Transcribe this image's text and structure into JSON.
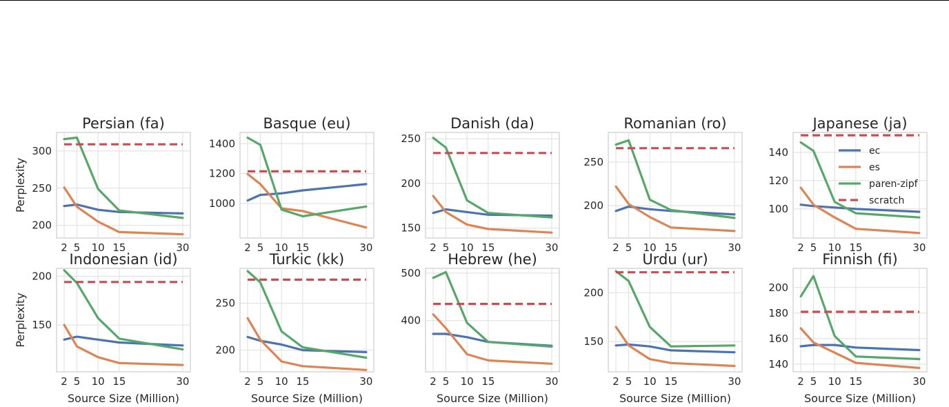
{
  "legend": {
    "position": "upper-right of Japanese (ja) panel",
    "entries": [
      {
        "key": "ec",
        "label": "ec",
        "color": "#4c72b0",
        "dash": false
      },
      {
        "key": "es",
        "label": "es",
        "color": "#dd8452",
        "dash": false
      },
      {
        "key": "parenzipf",
        "label": "paren-zipf",
        "color": "#55a868",
        "dash": false
      },
      {
        "key": "scratch",
        "label": "scratch",
        "color": "#c44e52",
        "dash": true
      }
    ]
  },
  "shared": {
    "xlabel": "Source Size (Million)",
    "ylabel": "Perplexity",
    "xticks": [
      2,
      5,
      10,
      15,
      30
    ],
    "xlim": [
      0.2,
      31.8
    ]
  },
  "chart_data": [
    {
      "type": "line",
      "title": "Persian (fa)",
      "ylim": [
        183,
        325
      ],
      "yticks": [
        200,
        250,
        300
      ],
      "x": [
        2,
        5,
        10,
        15,
        30
      ],
      "series": [
        {
          "name": "ec",
          "values": [
            226,
            228,
            221,
            218,
            216
          ]
        },
        {
          "name": "es",
          "values": [
            251,
            225,
            205,
            191,
            188
          ]
        },
        {
          "name": "paren-zipf",
          "values": [
            316,
            318,
            249,
            220,
            210
          ]
        },
        {
          "name": "scratch",
          "values": [
            309,
            309,
            309,
            309,
            309
          ]
        }
      ]
    },
    {
      "type": "line",
      "title": "Basque (eu)",
      "ylim": [
        770,
        1475
      ],
      "yticks": [
        1000,
        1200,
        1400
      ],
      "x": [
        2,
        5,
        10,
        15,
        30
      ],
      "series": [
        {
          "name": "ec",
          "values": [
            1020,
            1058,
            1068,
            1088,
            1130
          ]
        },
        {
          "name": "es",
          "values": [
            1197,
            1130,
            968,
            950,
            840
          ]
        },
        {
          "name": "paren-zipf",
          "values": [
            1440,
            1392,
            960,
            915,
            980
          ]
        },
        {
          "name": "scratch",
          "values": [
            1215,
            1215,
            1215,
            1215,
            1215
          ]
        }
      ]
    },
    {
      "type": "line",
      "title": "Danish (da)",
      "ylim": [
        139,
        257
      ],
      "yticks": [
        150,
        200,
        250
      ],
      "x": [
        2,
        5,
        10,
        15,
        30
      ],
      "series": [
        {
          "name": "ec",
          "values": [
            167,
            171,
            168,
            165,
            164
          ]
        },
        {
          "name": "es",
          "values": [
            186,
            168,
            154,
            149,
            145
          ]
        },
        {
          "name": "paren-zipf",
          "values": [
            251,
            240,
            181,
            167,
            162
          ]
        },
        {
          "name": "scratch",
          "values": [
            234,
            234,
            234,
            234,
            234
          ]
        }
      ]
    },
    {
      "type": "line",
      "title": "Romanian (ro)",
      "ylim": [
        163,
        284
      ],
      "yticks": [
        200,
        250
      ],
      "x": [
        2,
        5,
        10,
        15,
        30
      ],
      "series": [
        {
          "name": "ec",
          "values": [
            194,
            199,
            196,
            194,
            190
          ]
        },
        {
          "name": "es",
          "values": [
            222,
            202,
            187,
            175,
            171
          ]
        },
        {
          "name": "paren-zipf",
          "values": [
            270,
            275,
            207,
            195,
            186
          ]
        },
        {
          "name": "scratch",
          "values": [
            266,
            266,
            266,
            266,
            266
          ]
        }
      ]
    },
    {
      "type": "line",
      "title": "Japanese (ja)",
      "ylim": [
        79.5,
        154
      ],
      "yticks": [
        100,
        120,
        140
      ],
      "x": [
        2,
        5,
        10,
        15,
        30
      ],
      "series": [
        {
          "name": "ec",
          "values": [
            103,
            102,
            101,
            100,
            98
          ]
        },
        {
          "name": "es",
          "values": [
            115,
            103,
            94,
            86,
            83
          ]
        },
        {
          "name": "paren-zipf",
          "values": [
            147,
            141,
            105,
            97,
            94
          ]
        },
        {
          "name": "scratch",
          "values": [
            152,
            152,
            152,
            152,
            152
          ]
        }
      ]
    },
    {
      "type": "line",
      "title": "Indonesian (id)",
      "ylim": [
        102,
        208
      ],
      "yticks": [
        150,
        200
      ],
      "x": [
        2,
        5,
        10,
        15,
        30
      ],
      "series": [
        {
          "name": "ec",
          "values": [
            135,
            138,
            135,
            132,
            129
          ]
        },
        {
          "name": "es",
          "values": [
            150,
            128,
            117,
            111,
            109
          ]
        },
        {
          "name": "paren-zipf",
          "values": [
            206,
            193,
            157,
            136,
            125
          ]
        },
        {
          "name": "scratch",
          "values": [
            194,
            194,
            194,
            194,
            194
          ]
        }
      ]
    },
    {
      "type": "line",
      "title": "Turkic (kk)",
      "ylim": [
        177,
        287
      ],
      "yticks": [
        200,
        250
      ],
      "x": [
        2,
        5,
        10,
        15,
        30
      ],
      "series": [
        {
          "name": "ec",
          "values": [
            214,
            210,
            206,
            200,
            198
          ]
        },
        {
          "name": "es",
          "values": [
            234,
            211,
            188,
            183,
            179
          ]
        },
        {
          "name": "paren-zipf",
          "values": [
            284,
            272,
            220,
            203,
            192
          ]
        },
        {
          "name": "scratch",
          "values": [
            275,
            275,
            275,
            275,
            275
          ]
        }
      ]
    },
    {
      "type": "line",
      "title": "Hebrew (he)",
      "ylim": [
        292,
        510
      ],
      "yticks": [
        400,
        500
      ],
      "x": [
        2,
        5,
        10,
        15,
        30
      ],
      "series": [
        {
          "name": "ec",
          "values": [
            372,
            372,
            365,
            355,
            347
          ]
        },
        {
          "name": "es",
          "values": [
            413,
            384,
            329,
            316,
            309
          ]
        },
        {
          "name": "paren-zipf",
          "values": [
            490,
            502,
            395,
            355,
            345
          ]
        },
        {
          "name": "scratch",
          "values": [
            435,
            435,
            435,
            435,
            435
          ]
        }
      ]
    },
    {
      "type": "line",
      "title": "Urdu (ur)",
      "ylim": [
        119,
        225
      ],
      "yticks": [
        150,
        200
      ],
      "x": [
        2,
        5,
        10,
        15,
        30
      ],
      "series": [
        {
          "name": "ec",
          "values": [
            146,
            147,
            145,
            141,
            139
          ]
        },
        {
          "name": "es",
          "values": [
            165,
            146,
            132,
            128,
            125
          ]
        },
        {
          "name": "paren-zipf",
          "values": [
            222,
            212,
            165,
            145,
            146
          ]
        },
        {
          "name": "scratch",
          "values": [
            221,
            221,
            221,
            221,
            221
          ]
        }
      ]
    },
    {
      "type": "line",
      "title": "Finnish (fi)",
      "ylim": [
        134,
        215
      ],
      "yticks": [
        140,
        160,
        180,
        200
      ],
      "x": [
        2,
        5,
        10,
        15,
        30
      ],
      "series": [
        {
          "name": "ec",
          "values": [
            154,
            155,
            155,
            153,
            151
          ]
        },
        {
          "name": "es",
          "values": [
            168,
            157,
            149,
            141,
            137
          ]
        },
        {
          "name": "paren-zipf",
          "values": [
            193,
            209,
            162,
            146,
            144
          ]
        },
        {
          "name": "scratch",
          "values": [
            181,
            181,
            181,
            181,
            181
          ]
        }
      ]
    }
  ]
}
